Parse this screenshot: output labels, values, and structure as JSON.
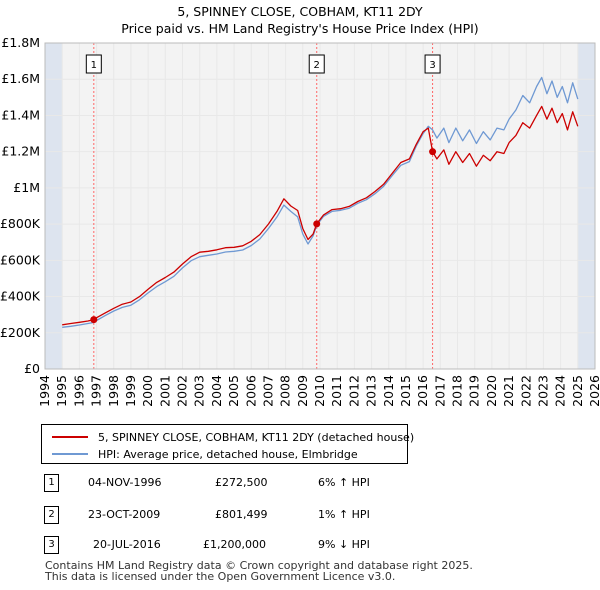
{
  "colors": {
    "property_line": "#cc0000",
    "hpi_line": "#6f99d3",
    "grid": "#e8e8e8",
    "plot_bg": "#f3f3f3",
    "shade": "#dde4ef",
    "marker": "#cc0000",
    "event_line": "#ff6666"
  },
  "chart_data": {
    "type": "line",
    "title": "5, SPINNEY CLOSE, COBHAM, KT11 2DY",
    "subtitle": "Price paid vs. HM Land Registry's House Price Index (HPI)",
    "xlabel": "",
    "ylabel": "",
    "xlim": [
      1994,
      2026
    ],
    "ylim": [
      0,
      1800000
    ],
    "x_ticks": [
      1994,
      1995,
      1996,
      1997,
      1998,
      1999,
      2000,
      2001,
      2002,
      2003,
      2004,
      2005,
      2006,
      2007,
      2008,
      2009,
      2010,
      2011,
      2012,
      2013,
      2014,
      2015,
      2016,
      2017,
      2018,
      2019,
      2020,
      2021,
      2022,
      2023,
      2024,
      2025,
      2026
    ],
    "y_ticks": [
      {
        "value": 0,
        "label": "£0"
      },
      {
        "value": 200000,
        "label": "£200K"
      },
      {
        "value": 400000,
        "label": "£400K"
      },
      {
        "value": 600000,
        "label": "£600K"
      },
      {
        "value": 800000,
        "label": "£800K"
      },
      {
        "value": 1000000,
        "label": "£1M"
      },
      {
        "value": 1200000,
        "label": "£1.2M"
      },
      {
        "value": 1400000,
        "label": "£1.4M"
      },
      {
        "value": 1600000,
        "label": "£1.6M"
      },
      {
        "value": 1800000,
        "label": "£1.8M"
      }
    ],
    "shaded_ranges": [
      [
        1994,
        1995.0
      ],
      [
        2025.0,
        2026
      ]
    ],
    "series": [
      {
        "name": "5, SPINNEY CLOSE, COBHAM, KT11 2DY (detached house)",
        "color": "#cc0000",
        "points": [
          [
            1995.0,
            244000
          ],
          [
            1995.5,
            251000
          ],
          [
            1996.0,
            258000
          ],
          [
            1996.5,
            265000
          ],
          [
            1996.84,
            272500
          ],
          [
            1997.0,
            283000
          ],
          [
            1997.5,
            310000
          ],
          [
            1998.0,
            335000
          ],
          [
            1998.5,
            358000
          ],
          [
            1999.0,
            370000
          ],
          [
            1999.5,
            400000
          ],
          [
            2000.0,
            440000
          ],
          [
            2000.5,
            478000
          ],
          [
            2001.0,
            505000
          ],
          [
            2001.5,
            535000
          ],
          [
            2002.0,
            580000
          ],
          [
            2002.5,
            620000
          ],
          [
            2003.0,
            645000
          ],
          [
            2003.5,
            650000
          ],
          [
            2004.0,
            658000
          ],
          [
            2004.5,
            670000
          ],
          [
            2005.0,
            672000
          ],
          [
            2005.5,
            680000
          ],
          [
            2006.0,
            705000
          ],
          [
            2006.5,
            742000
          ],
          [
            2007.0,
            800000
          ],
          [
            2007.5,
            870000
          ],
          [
            2007.9,
            940000
          ],
          [
            2008.3,
            900000
          ],
          [
            2008.7,
            875000
          ],
          [
            2009.0,
            775000
          ],
          [
            2009.3,
            715000
          ],
          [
            2009.6,
            745000
          ],
          [
            2009.81,
            801499
          ],
          [
            2010.2,
            850000
          ],
          [
            2010.7,
            880000
          ],
          [
            2011.2,
            885000
          ],
          [
            2011.7,
            898000
          ],
          [
            2012.2,
            925000
          ],
          [
            2012.7,
            945000
          ],
          [
            2013.2,
            980000
          ],
          [
            2013.7,
            1020000
          ],
          [
            2014.2,
            1080000
          ],
          [
            2014.7,
            1140000
          ],
          [
            2015.2,
            1160000
          ],
          [
            2015.6,
            1240000
          ],
          [
            2016.0,
            1310000
          ],
          [
            2016.3,
            1330000
          ],
          [
            2016.55,
            1200000
          ],
          [
            2016.8,
            1160000
          ],
          [
            2017.2,
            1210000
          ],
          [
            2017.5,
            1130000
          ],
          [
            2017.9,
            1200000
          ],
          [
            2018.3,
            1140000
          ],
          [
            2018.7,
            1190000
          ],
          [
            2019.1,
            1120000
          ],
          [
            2019.5,
            1180000
          ],
          [
            2019.9,
            1150000
          ],
          [
            2020.3,
            1200000
          ],
          [
            2020.7,
            1190000
          ],
          [
            2021.0,
            1250000
          ],
          [
            2021.4,
            1290000
          ],
          [
            2021.8,
            1360000
          ],
          [
            2022.2,
            1330000
          ],
          [
            2022.6,
            1400000
          ],
          [
            2022.9,
            1450000
          ],
          [
            2023.2,
            1380000
          ],
          [
            2023.5,
            1440000
          ],
          [
            2023.8,
            1360000
          ],
          [
            2024.1,
            1410000
          ],
          [
            2024.4,
            1320000
          ],
          [
            2024.7,
            1420000
          ],
          [
            2025.0,
            1340000
          ]
        ]
      },
      {
        "name": "HPI: Average price, detached house, Elmbridge",
        "color": "#6f99d3",
        "points": [
          [
            1995.0,
            230000
          ],
          [
            1995.5,
            236000
          ],
          [
            1996.0,
            243000
          ],
          [
            1996.5,
            251000
          ],
          [
            1996.84,
            257000
          ],
          [
            1997.0,
            268000
          ],
          [
            1997.5,
            295000
          ],
          [
            1998.0,
            320000
          ],
          [
            1998.5,
            340000
          ],
          [
            1999.0,
            352000
          ],
          [
            1999.5,
            382000
          ],
          [
            2000.0,
            420000
          ],
          [
            2000.5,
            455000
          ],
          [
            2001.0,
            482000
          ],
          [
            2001.5,
            512000
          ],
          [
            2002.0,
            558000
          ],
          [
            2002.5,
            598000
          ],
          [
            2003.0,
            620000
          ],
          [
            2003.5,
            628000
          ],
          [
            2004.0,
            635000
          ],
          [
            2004.5,
            646000
          ],
          [
            2005.0,
            650000
          ],
          [
            2005.5,
            657000
          ],
          [
            2006.0,
            682000
          ],
          [
            2006.5,
            718000
          ],
          [
            2007.0,
            775000
          ],
          [
            2007.5,
            840000
          ],
          [
            2007.9,
            905000
          ],
          [
            2008.3,
            870000
          ],
          [
            2008.7,
            840000
          ],
          [
            2009.0,
            745000
          ],
          [
            2009.3,
            690000
          ],
          [
            2009.6,
            735000
          ],
          [
            2009.81,
            793000
          ],
          [
            2010.2,
            842000
          ],
          [
            2010.7,
            870000
          ],
          [
            2011.2,
            876000
          ],
          [
            2011.7,
            888000
          ],
          [
            2012.2,
            915000
          ],
          [
            2012.7,
            935000
          ],
          [
            2013.2,
            968000
          ],
          [
            2013.7,
            1008000
          ],
          [
            2014.2,
            1068000
          ],
          [
            2014.7,
            1125000
          ],
          [
            2015.2,
            1145000
          ],
          [
            2015.6,
            1230000
          ],
          [
            2016.0,
            1300000
          ],
          [
            2016.3,
            1340000
          ],
          [
            2016.55,
            1320000
          ],
          [
            2016.8,
            1275000
          ],
          [
            2017.2,
            1330000
          ],
          [
            2017.5,
            1250000
          ],
          [
            2017.9,
            1330000
          ],
          [
            2018.3,
            1260000
          ],
          [
            2018.7,
            1320000
          ],
          [
            2019.1,
            1245000
          ],
          [
            2019.5,
            1310000
          ],
          [
            2019.9,
            1265000
          ],
          [
            2020.3,
            1330000
          ],
          [
            2020.7,
            1320000
          ],
          [
            2021.0,
            1380000
          ],
          [
            2021.4,
            1430000
          ],
          [
            2021.8,
            1510000
          ],
          [
            2022.2,
            1470000
          ],
          [
            2022.6,
            1560000
          ],
          [
            2022.9,
            1610000
          ],
          [
            2023.2,
            1520000
          ],
          [
            2023.5,
            1590000
          ],
          [
            2023.8,
            1500000
          ],
          [
            2024.1,
            1560000
          ],
          [
            2024.4,
            1470000
          ],
          [
            2024.7,
            1580000
          ],
          [
            2025.0,
            1490000
          ]
        ]
      }
    ],
    "sales": [
      {
        "label": "1",
        "x": 1996.84,
        "y": 272500
      },
      {
        "label": "2",
        "x": 2009.81,
        "y": 801499
      },
      {
        "label": "3",
        "x": 2016.55,
        "y": 1200000
      }
    ]
  },
  "legend": {
    "property_label": "5, SPINNEY CLOSE, COBHAM, KT11 2DY (detached house)",
    "hpi_label": "HPI: Average price, detached house, Elmbridge"
  },
  "transactions": [
    {
      "num": "1",
      "date": "04-NOV-1996",
      "price": "£272,500",
      "hpi": "6% ↑ HPI"
    },
    {
      "num": "2",
      "date": "23-OCT-2009",
      "price": "£801,499",
      "hpi": "1% ↑ HPI"
    },
    {
      "num": "3",
      "date": "20-JUL-2016",
      "price": "£1,200,000",
      "hpi": "9% ↓ HPI"
    }
  ],
  "footer": {
    "line1": "Contains HM Land Registry data © Crown copyright and database right 2025.",
    "line2": "This data is licensed under the Open Government Licence v3.0."
  }
}
